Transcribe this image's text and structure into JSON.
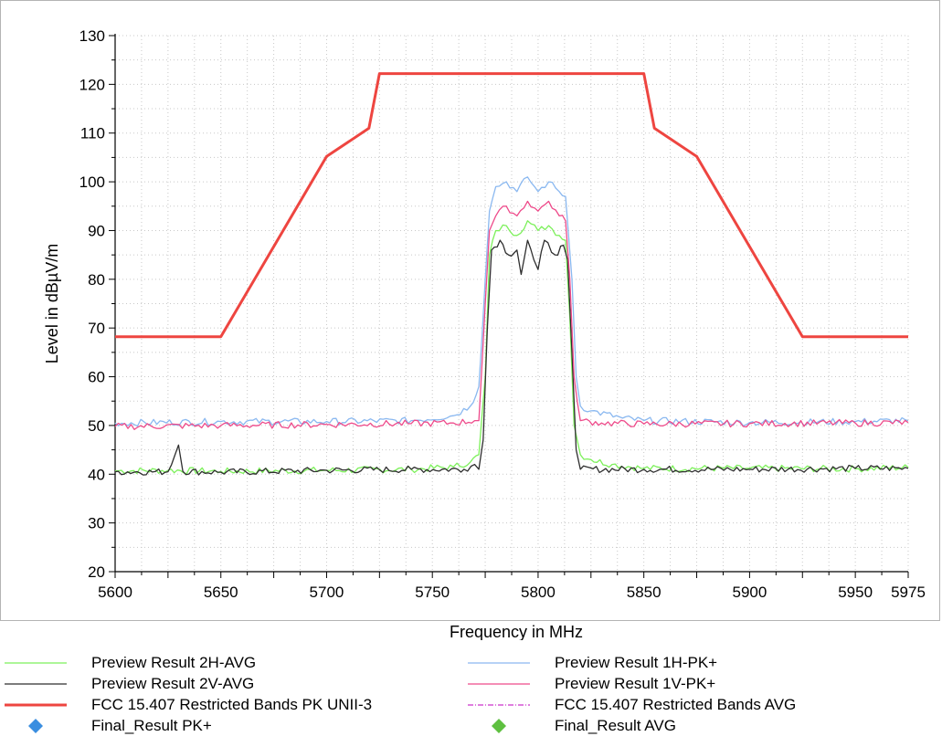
{
  "chart_data": {
    "type": "line",
    "xlabel": "Frequency in MHz",
    "ylabel": "Level in dBµV/m",
    "xlim": [
      5600,
      5975
    ],
    "ylim": [
      20,
      130
    ],
    "x_ticks": [
      5600,
      5650,
      5700,
      5750,
      5800,
      5850,
      5900,
      5950,
      5975
    ],
    "y_ticks": [
      20,
      30,
      40,
      50,
      60,
      70,
      80,
      90,
      100,
      110,
      120,
      130
    ],
    "grid": true,
    "legend_position": "bottom",
    "series": [
      {
        "name": "Preview Result 2H-AVG",
        "color": "#7cf05a",
        "points": [
          [
            5600,
            40.7
          ],
          [
            5625,
            40.8
          ],
          [
            5650,
            40.6
          ],
          [
            5700,
            40.8
          ],
          [
            5740,
            41
          ],
          [
            5760,
            41.5
          ],
          [
            5768,
            42.5
          ],
          [
            5772,
            44
          ],
          [
            5775,
            60
          ],
          [
            5777,
            85
          ],
          [
            5780,
            90
          ],
          [
            5785,
            91
          ],
          [
            5790,
            89
          ],
          [
            5795,
            92
          ],
          [
            5800,
            90
          ],
          [
            5805,
            91
          ],
          [
            5810,
            89
          ],
          [
            5813,
            88
          ],
          [
            5815,
            72
          ],
          [
            5817,
            50
          ],
          [
            5820,
            44
          ],
          [
            5825,
            43
          ],
          [
            5835,
            42
          ],
          [
            5850,
            41.2
          ],
          [
            5900,
            41.2
          ],
          [
            5950,
            41.1
          ],
          [
            5975,
            41.4
          ]
        ]
      },
      {
        "name": "Preview Result 2V-AVG",
        "color": "#2e2e2e",
        "points": [
          [
            5600,
            40.5
          ],
          [
            5625,
            40.5
          ],
          [
            5630,
            46
          ],
          [
            5632,
            40.6
          ],
          [
            5650,
            40.4
          ],
          [
            5700,
            40.8
          ],
          [
            5740,
            41
          ],
          [
            5765,
            41
          ],
          [
            5770,
            42
          ],
          [
            5772,
            41
          ],
          [
            5774,
            47
          ],
          [
            5776,
            70
          ],
          [
            5778,
            86
          ],
          [
            5782,
            88
          ],
          [
            5786,
            85
          ],
          [
            5790,
            86
          ],
          [
            5792,
            81
          ],
          [
            5795,
            88
          ],
          [
            5798,
            84
          ],
          [
            5800,
            82
          ],
          [
            5803,
            88
          ],
          [
            5808,
            85
          ],
          [
            5812,
            87
          ],
          [
            5814,
            84
          ],
          [
            5816,
            65
          ],
          [
            5818,
            45
          ],
          [
            5820,
            41
          ],
          [
            5850,
            41
          ],
          [
            5900,
            41
          ],
          [
            5950,
            41.2
          ],
          [
            5975,
            41.2
          ]
        ]
      },
      {
        "name": "FCC 15.407 Restricted Bands PK UNII-3",
        "color": "#ee4540",
        "width": 3,
        "points": [
          [
            5600,
            68.2
          ],
          [
            5650,
            68.2
          ],
          [
            5700,
            105.2
          ],
          [
            5720,
            111
          ],
          [
            5725,
            122.2
          ],
          [
            5850,
            122.2
          ],
          [
            5855,
            111
          ],
          [
            5875,
            105.2
          ],
          [
            5925,
            68.2
          ],
          [
            5975,
            68.2
          ]
        ]
      },
      {
        "name": "Preview Result 1H-PK+",
        "color": "#8ab8f0",
        "points": [
          [
            5600,
            50.5
          ],
          [
            5650,
            50.8
          ],
          [
            5700,
            50.8
          ],
          [
            5740,
            51
          ],
          [
            5760,
            52
          ],
          [
            5768,
            54
          ],
          [
            5772,
            58
          ],
          [
            5775,
            80
          ],
          [
            5777,
            94
          ],
          [
            5780,
            99
          ],
          [
            5785,
            100
          ],
          [
            5790,
            98
          ],
          [
            5795,
            101
          ],
          [
            5800,
            98
          ],
          [
            5805,
            100
          ],
          [
            5810,
            98
          ],
          [
            5813,
            97
          ],
          [
            5816,
            80
          ],
          [
            5818,
            60
          ],
          [
            5820,
            54
          ],
          [
            5825,
            53
          ],
          [
            5840,
            51.5
          ],
          [
            5850,
            51
          ],
          [
            5900,
            50.6
          ],
          [
            5950,
            50.8
          ],
          [
            5975,
            51
          ]
        ]
      },
      {
        "name": "Preview Result 1V-PK+",
        "color": "#ee4a8a",
        "points": [
          [
            5600,
            49.8
          ],
          [
            5650,
            50
          ],
          [
            5700,
            50.2
          ],
          [
            5740,
            50.4
          ],
          [
            5760,
            50.5
          ],
          [
            5770,
            51
          ],
          [
            5772,
            51
          ],
          [
            5775,
            75
          ],
          [
            5777,
            90
          ],
          [
            5780,
            93
          ],
          [
            5785,
            95
          ],
          [
            5790,
            93
          ],
          [
            5795,
            96
          ],
          [
            5800,
            94
          ],
          [
            5805,
            96
          ],
          [
            5810,
            93
          ],
          [
            5813,
            92
          ],
          [
            5815,
            80
          ],
          [
            5817,
            60
          ],
          [
            5820,
            51
          ],
          [
            5830,
            50.5
          ],
          [
            5850,
            50.3
          ],
          [
            5900,
            50.4
          ],
          [
            5950,
            50.5
          ],
          [
            5975,
            50.6
          ]
        ]
      }
    ]
  },
  "legend": [
    {
      "label": "Preview Result 2H-AVG",
      "kind": "line",
      "color": "#7cf05a"
    },
    {
      "label": "Preview Result 1H-PK+",
      "kind": "line",
      "color": "#8ab8f0"
    },
    {
      "label": "Preview Result 2V-AVG",
      "kind": "line",
      "color": "#2e2e2e"
    },
    {
      "label": "Preview Result 1V-PK+",
      "kind": "line",
      "color": "#ee4a8a"
    },
    {
      "label": "FCC 15.407 Restricted Bands PK UNII-3",
      "kind": "thick-line",
      "color": "#ee4540"
    },
    {
      "label": "FCC 15.407 Restricted Bands AVG",
      "kind": "dashdot-line",
      "color": "#cc33cc"
    },
    {
      "label": "Final_Result PK+",
      "kind": "diamond",
      "color": "#3a8ee0"
    },
    {
      "label": "Final_Result AVG",
      "kind": "diamond",
      "color": "#5ec040"
    }
  ]
}
